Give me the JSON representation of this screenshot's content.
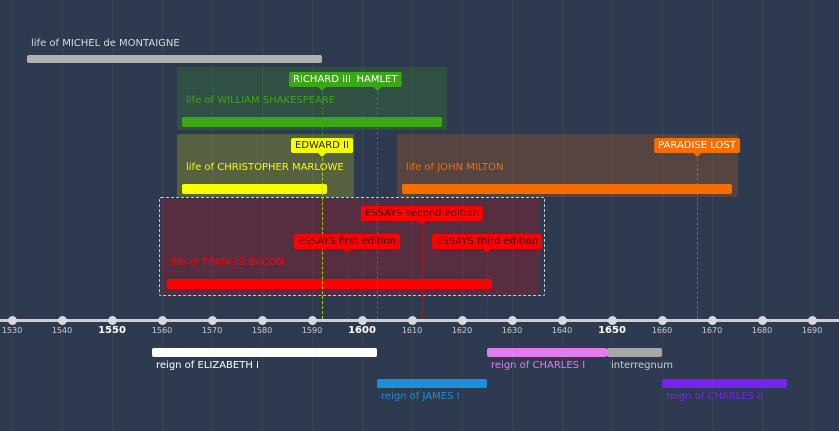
{
  "chart_data": {
    "type": "timeline",
    "x_axis": {
      "min": 1530,
      "max": 1690,
      "tick_step": 10,
      "major_ticks": [
        1550,
        1600,
        1650
      ],
      "tick_labels": [
        "1530",
        "1540",
        "1550",
        "1560",
        "1570",
        "1580",
        "1590",
        "1600",
        "1610",
        "1620",
        "1630",
        "1640",
        "1650",
        "1660",
        "1670",
        "1680",
        "1690"
      ]
    },
    "grid": true,
    "lives": [
      {
        "label": "life of MICHEL de MONTAIGNE",
        "start": 1533,
        "end": 1592,
        "color": "#b0b0b0",
        "boxed": false
      },
      {
        "label": "life of WILLIAM SHAKESPEARE",
        "start": 1564,
        "end": 1616,
        "color": "#3aa815",
        "boxed": true
      },
      {
        "label": "life of CHRISTOPHER MARLOWE",
        "start": 1564,
        "end": 1593,
        "color": "#f5ff00",
        "boxed": true
      },
      {
        "label": "life of JOHN MILTON",
        "start": 1608,
        "end": 1674,
        "color": "#f56e00",
        "boxed": true
      },
      {
        "label": "life of FRANCIS BACON",
        "start": 1561,
        "end": 1626,
        "color": "#ff0000",
        "boxed": true,
        "selected": true
      }
    ],
    "events": [
      {
        "label": "RICHARD III",
        "year": 1592,
        "color": "#3aa815",
        "text_color": "#ffffff",
        "row": 1
      },
      {
        "label": "HAMLET",
        "year": 1603,
        "color": "#3aa815",
        "text_color": "#ffffff",
        "row": 1
      },
      {
        "label": "EDWARD II",
        "year": 1592,
        "color": "#f5ff00",
        "text_color": "#222222",
        "row": 2
      },
      {
        "label": "PARADISE LOST",
        "year": 1667,
        "color": "#f56e00",
        "text_color": "#ffffff",
        "row": 3
      },
      {
        "label": "ESSAYS first edition",
        "year": 1597,
        "color": "#ff0000",
        "text_color": "#330000",
        "row": 4
      },
      {
        "label": "ESSAYS second edition",
        "year": 1612,
        "color": "#ff0000",
        "text_color": "#330000",
        "row": 4
      },
      {
        "label": "ESSAYS third edition",
        "year": 1625,
        "color": "#ff0000",
        "text_color": "#330000",
        "row": 4
      }
    ],
    "reigns": [
      {
        "label": "reign of ELIZABETH I",
        "start": 1558,
        "end": 1603,
        "color": "#ffffff"
      },
      {
        "label": "reign of JAMES I",
        "start": 1603,
        "end": 1625,
        "color": "#1a8fdc"
      },
      {
        "label": "reign of CHARLES I",
        "start": 1625,
        "end": 1649,
        "color": "#e07ef0"
      },
      {
        "label": "interregnum",
        "start": 1649,
        "end": 1660,
        "color": "#a8a8a8"
      },
      {
        "label": "reign of CHARLES II",
        "start": 1660,
        "end": 1685,
        "color": "#7a22f0"
      }
    ]
  }
}
